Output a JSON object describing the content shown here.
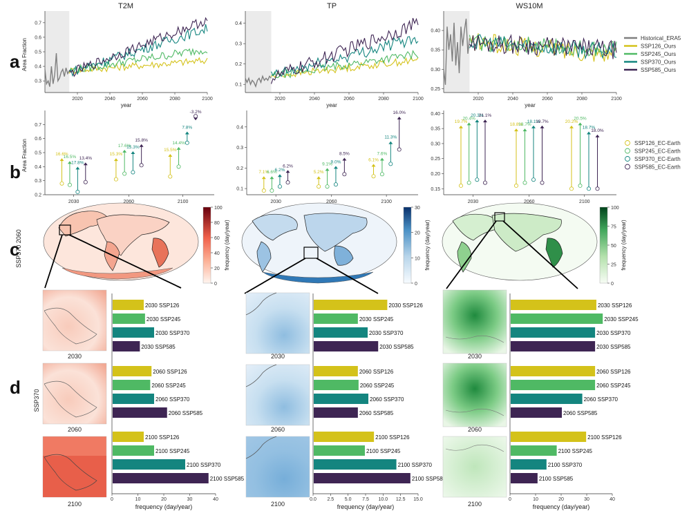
{
  "panel_letters": {
    "a": "a",
    "b": "b",
    "c": "c",
    "d": "d"
  },
  "column_titles": [
    "T2M",
    "TP",
    "WS10M"
  ],
  "row_labels": {
    "c": "SSP370 2060",
    "d": "SSP370"
  },
  "colors": {
    "historical": "#7f7f7f",
    "ssp126": "#d4c21a",
    "ssp245": "#4fb964",
    "ssp370": "#14857f",
    "ssp585": "#3e2553",
    "shade": "#ebebeb"
  },
  "legend_a": [
    "Historical_ERA5",
    "SSP126_Ours",
    "SSP245_Ours",
    "SSP370_Ours",
    "SSP585_Ours"
  ],
  "legend_b": [
    "SSP126_EC-Earth",
    "SSP245_EC-Earth",
    "SSP370_EC-Earth",
    "SSP585_EC-Earth"
  ],
  "chart_data": [
    {
      "id": "a-T2M",
      "type": "line",
      "title": "T2M",
      "xlabel": "year",
      "ylabel": "Area Fraction",
      "xlim": [
        2000,
        2100
      ],
      "ylim": [
        0.22,
        0.78
      ],
      "xticks": [
        2020,
        2040,
        2060,
        2080,
        2100
      ],
      "yticks": [
        0.3,
        0.4,
        0.5,
        0.6,
        0.7
      ],
      "shaded_range": [
        2000,
        2015
      ],
      "series": [
        {
          "name": "Historical_ERA5",
          "x_start": 2000,
          "values": [
            0.38,
            0.28,
            0.3,
            0.26,
            0.4,
            0.28,
            0.34,
            0.49,
            0.3,
            0.32,
            0.36,
            0.38,
            0.33,
            0.39,
            0.35,
            0.37
          ]
        },
        {
          "name": "SSP126_Ours",
          "trend": [
            0.37,
            0.44
          ],
          "noise": 0.025
        },
        {
          "name": "SSP245_Ours",
          "trend": [
            0.37,
            0.52
          ],
          "noise": 0.03
        },
        {
          "name": "SSP370_Ours",
          "trend": [
            0.36,
            0.66
          ],
          "noise": 0.035
        },
        {
          "name": "SSP585_Ours",
          "trend": [
            0.35,
            0.72
          ],
          "noise": 0.035
        }
      ]
    },
    {
      "id": "a-TP",
      "type": "line",
      "title": "TP",
      "xlabel": "year",
      "ylabel": "",
      "xlim": [
        2000,
        2100
      ],
      "ylim": [
        0.06,
        0.46
      ],
      "xticks": [
        2020,
        2040,
        2060,
        2080,
        2100
      ],
      "yticks": [
        0.1,
        0.2,
        0.3,
        0.4
      ],
      "shaded_range": [
        2000,
        2015
      ],
      "series": [
        {
          "name": "Historical_ERA5",
          "x_start": 2000,
          "values": [
            0.13,
            0.11,
            0.13,
            0.1,
            0.12,
            0.11,
            0.09,
            0.12,
            0.13,
            0.11,
            0.14,
            0.12,
            0.13,
            0.12,
            0.14,
            0.13
          ]
        },
        {
          "name": "SSP126_Ours",
          "trend": [
            0.14,
            0.22
          ],
          "noise": 0.018
        },
        {
          "name": "SSP245_Ours",
          "trend": [
            0.14,
            0.25
          ],
          "noise": 0.02
        },
        {
          "name": "SSP370_Ours",
          "trend": [
            0.14,
            0.33
          ],
          "noise": 0.03
        },
        {
          "name": "SSP585_Ours",
          "trend": [
            0.13,
            0.4
          ],
          "noise": 0.035
        }
      ]
    },
    {
      "id": "a-WS10M",
      "type": "line",
      "title": "WS10M",
      "xlabel": "year",
      "ylabel": "",
      "xlim": [
        2000,
        2100
      ],
      "ylim": [
        0.24,
        0.45
      ],
      "xticks": [
        2020,
        2040,
        2060,
        2080,
        2100
      ],
      "yticks": [
        0.25,
        0.3,
        0.35,
        0.4
      ],
      "shaded_range": [
        2000,
        2015
      ],
      "series": [
        {
          "name": "Historical_ERA5",
          "x_start": 2000,
          "values": [
            0.3,
            0.26,
            0.41,
            0.35,
            0.39,
            0.32,
            0.42,
            0.31,
            0.37,
            0.29,
            0.41,
            0.36,
            0.4,
            0.43,
            0.34,
            0.38
          ]
        },
        {
          "name": "SSP126_Ours",
          "trend": [
            0.37,
            0.34
          ],
          "noise": 0.025
        },
        {
          "name": "SSP245_Ours",
          "trend": [
            0.37,
            0.35
          ],
          "noise": 0.022
        },
        {
          "name": "SSP370_Ours",
          "trend": [
            0.37,
            0.345
          ],
          "noise": 0.022
        },
        {
          "name": "SSP585_Ours",
          "trend": [
            0.37,
            0.35
          ],
          "noise": 0.025
        }
      ]
    },
    {
      "id": "b-T2M",
      "type": "scatter",
      "ylabel": "Area Fraction",
      "ylim": [
        0.2,
        0.8
      ],
      "yticks": [
        0.2,
        0.3,
        0.4,
        0.5,
        0.6,
        0.7
      ],
      "xgroups": [
        "2030",
        "2060",
        "2100"
      ],
      "points": [
        {
          "group": 0,
          "scenario": 0,
          "from": 0.28,
          "to": 0.46,
          "label": "16.6%"
        },
        {
          "group": 0,
          "scenario": 1,
          "from": 0.27,
          "to": 0.44,
          "label": "16.5%"
        },
        {
          "group": 0,
          "scenario": 2,
          "from": 0.22,
          "to": 0.4,
          "label": "17.8%"
        },
        {
          "group": 0,
          "scenario": 3,
          "from": 0.29,
          "to": 0.43,
          "label": "13.4%"
        },
        {
          "group": 1,
          "scenario": 0,
          "from": 0.31,
          "to": 0.46,
          "label": "15.3%"
        },
        {
          "group": 1,
          "scenario": 1,
          "from": 0.35,
          "to": 0.52,
          "label": "17.6%"
        },
        {
          "group": 1,
          "scenario": 2,
          "from": 0.36,
          "to": 0.51,
          "label": "15.3%"
        },
        {
          "group": 1,
          "scenario": 3,
          "from": 0.41,
          "to": 0.56,
          "label": "15.8%"
        },
        {
          "group": 2,
          "scenario": 0,
          "from": 0.33,
          "to": 0.49,
          "label": "15.5%"
        },
        {
          "group": 2,
          "scenario": 1,
          "from": 0.4,
          "to": 0.54,
          "label": "14.4%"
        },
        {
          "group": 2,
          "scenario": 2,
          "from": 0.57,
          "to": 0.65,
          "label": "7.8%"
        },
        {
          "group": 2,
          "scenario": 3,
          "from": 0.76,
          "to": 0.73,
          "label": "-3.2%"
        }
      ]
    },
    {
      "id": "b-TP",
      "type": "scatter",
      "ylabel": "",
      "ylim": [
        0.07,
        0.48
      ],
      "yticks": [
        0.1,
        0.2,
        0.3,
        0.4
      ],
      "xgroups": [
        "2030",
        "2060",
        "2100"
      ],
      "points": [
        {
          "group": 0,
          "scenario": 0,
          "from": 0.09,
          "to": 0.16,
          "label": "7.1%"
        },
        {
          "group": 0,
          "scenario": 1,
          "from": 0.09,
          "to": 0.16,
          "label": "6.6%"
        },
        {
          "group": 0,
          "scenario": 2,
          "from": 0.11,
          "to": 0.17,
          "label": "6.2%"
        },
        {
          "group": 0,
          "scenario": 3,
          "from": 0.13,
          "to": 0.19,
          "label": "6.2%"
        },
        {
          "group": 1,
          "scenario": 0,
          "from": 0.11,
          "to": 0.16,
          "label": "5.2%"
        },
        {
          "group": 1,
          "scenario": 1,
          "from": 0.11,
          "to": 0.2,
          "label": "9.1%"
        },
        {
          "group": 1,
          "scenario": 2,
          "from": 0.12,
          "to": 0.21,
          "label": "9.0%"
        },
        {
          "group": 1,
          "scenario": 3,
          "from": 0.17,
          "to": 0.25,
          "label": "8.5%"
        },
        {
          "group": 2,
          "scenario": 0,
          "from": 0.16,
          "to": 0.22,
          "label": "6.1%"
        },
        {
          "group": 2,
          "scenario": 1,
          "from": 0.17,
          "to": 0.25,
          "label": "7.6%"
        },
        {
          "group": 2,
          "scenario": 2,
          "from": 0.22,
          "to": 0.33,
          "label": "11.3%"
        },
        {
          "group": 2,
          "scenario": 3,
          "from": 0.29,
          "to": 0.45,
          "label": "16.0%"
        }
      ]
    },
    {
      "id": "b-WS10M",
      "type": "scatter",
      "ylabel": "",
      "ylim": [
        0.13,
        0.41
      ],
      "yticks": [
        0.15,
        0.2,
        0.25,
        0.3,
        0.35,
        0.4
      ],
      "xgroups": [
        "2030",
        "2060",
        "2100"
      ],
      "points": [
        {
          "group": 0,
          "scenario": 0,
          "from": 0.16,
          "to": 0.36,
          "label": "19.7%"
        },
        {
          "group": 0,
          "scenario": 1,
          "from": 0.17,
          "to": 0.37,
          "label": "20.4%"
        },
        {
          "group": 0,
          "scenario": 2,
          "from": 0.18,
          "to": 0.38,
          "label": "20.3%"
        },
        {
          "group": 0,
          "scenario": 3,
          "from": 0.17,
          "to": 0.38,
          "label": "21.1%"
        },
        {
          "group": 1,
          "scenario": 0,
          "from": 0.16,
          "to": 0.35,
          "label": "18.8%"
        },
        {
          "group": 1,
          "scenario": 1,
          "from": 0.17,
          "to": 0.35,
          "label": "18.7%"
        },
        {
          "group": 1,
          "scenario": 2,
          "from": 0.18,
          "to": 0.36,
          "label": "18.1%"
        },
        {
          "group": 1,
          "scenario": 3,
          "from": 0.17,
          "to": 0.36,
          "label": "19.7%"
        },
        {
          "group": 2,
          "scenario": 0,
          "from": 0.15,
          "to": 0.36,
          "label": "20.2%"
        },
        {
          "group": 2,
          "scenario": 1,
          "from": 0.16,
          "to": 0.37,
          "label": "20.5%"
        },
        {
          "group": 2,
          "scenario": 2,
          "from": 0.15,
          "to": 0.34,
          "label": "18.7%"
        },
        {
          "group": 2,
          "scenario": 3,
          "from": 0.15,
          "to": 0.33,
          "label": "18.0%"
        }
      ]
    },
    {
      "id": "d-T2M",
      "type": "bar",
      "orientation": "horizontal",
      "xlabel": "frequency (day/year)",
      "xlim": [
        0,
        40
      ],
      "xticks": [
        0,
        10,
        20,
        30,
        40
      ],
      "groups": [
        {
          "year": "2030",
          "bars": [
            {
              "label": "2030 SSP126",
              "value": 12
            },
            {
              "label": "2030 SSP245",
              "value": 12.5
            },
            {
              "label": "2030 SSP370",
              "value": 16
            },
            {
              "label": "2030 SSP585",
              "value": 10.5
            }
          ]
        },
        {
          "year": "2060",
          "bars": [
            {
              "label": "2060 SSP126",
              "value": 15
            },
            {
              "label": "2060 SSP245",
              "value": 14.5
            },
            {
              "label": "2060 SSP370",
              "value": 16
            },
            {
              "label": "2060 SSP585",
              "value": 21
            }
          ]
        },
        {
          "year": "2100",
          "bars": [
            {
              "label": "2100 SSP126",
              "value": 12
            },
            {
              "label": "2100 SSP245",
              "value": 16
            },
            {
              "label": "2100 SSP370",
              "value": 28
            },
            {
              "label": "2100 SSP585",
              "value": 37
            }
          ]
        }
      ]
    },
    {
      "id": "d-TP",
      "type": "bar",
      "orientation": "horizontal",
      "xlabel": "frequency (day/year)",
      "xlim": [
        0,
        15
      ],
      "xticks": [
        0.0,
        2.5,
        5.0,
        7.5,
        10.0,
        12.5,
        15.0
      ],
      "groups": [
        {
          "year": "2030",
          "bars": [
            {
              "label": "2030 SSP126",
              "value": 10.5
            },
            {
              "label": "2030 SSP245",
              "value": 6.3
            },
            {
              "label": "2030 SSP370",
              "value": 7.7
            },
            {
              "label": "2030 SSP585",
              "value": 9.2
            }
          ]
        },
        {
          "year": "2060",
          "bars": [
            {
              "label": "2060 SSP126",
              "value": 6.3
            },
            {
              "label": "2060 SSP245",
              "value": 6.4
            },
            {
              "label": "2060 SSP370",
              "value": 7.8
            },
            {
              "label": "2060 SSP585",
              "value": 6.3
            }
          ]
        },
        {
          "year": "2100",
          "bars": [
            {
              "label": "2100 SSP126",
              "value": 8.6
            },
            {
              "label": "2100 SSP245",
              "value": 7.3
            },
            {
              "label": "2100 SSP370",
              "value": 11.8
            },
            {
              "label": "2100 SSP58",
              "value": 13.8
            }
          ]
        }
      ]
    },
    {
      "id": "d-WS10M",
      "type": "bar",
      "orientation": "horizontal",
      "xlabel": "frequency (day/year)",
      "xlim": [
        0,
        40
      ],
      "xticks": [
        0,
        10,
        20,
        30,
        40
      ],
      "groups": [
        {
          "year": "2030",
          "bars": [
            {
              "label": "2030 SSP126",
              "value": 33.5
            },
            {
              "label": "2030 SSP245",
              "value": 36
            },
            {
              "label": "2030 SSP370",
              "value": 33
            },
            {
              "label": "2030 SSP585",
              "value": 33
            }
          ]
        },
        {
          "year": "2060",
          "bars": [
            {
              "label": "2060 SSP126",
              "value": 33
            },
            {
              "label": "2060 SSP245",
              "value": 33
            },
            {
              "label": "2060 SSP370",
              "value": 28
            },
            {
              "label": "2060 SSP585",
              "value": 20
            }
          ]
        },
        {
          "year": "2100",
          "bars": [
            {
              "label": "2100 SSP126",
              "value": 29.5
            },
            {
              "label": "2100 SSP245",
              "value": 18
            },
            {
              "label": "2100 SSP370",
              "value": 14
            },
            {
              "label": "2100 SSP585",
              "value": 10.5
            }
          ]
        }
      ]
    }
  ],
  "maps_c": [
    {
      "id": "c-T2M",
      "colorbar_max": 100,
      "ticks": [
        0,
        20,
        40,
        60,
        80,
        100
      ],
      "label": "frequency (day/year)",
      "cmap": "reds"
    },
    {
      "id": "c-TP",
      "colorbar_max": 30,
      "ticks": [
        0,
        10,
        20,
        30
      ],
      "label": "frequency (day/year)",
      "cmap": "blues"
    },
    {
      "id": "c-WS10M",
      "colorbar_max": 100,
      "ticks": [
        0,
        25,
        50,
        75,
        100
      ],
      "label": "frequency (day/year)",
      "cmap": "greens"
    }
  ],
  "map_years": [
    "2030",
    "2060",
    "2100"
  ]
}
